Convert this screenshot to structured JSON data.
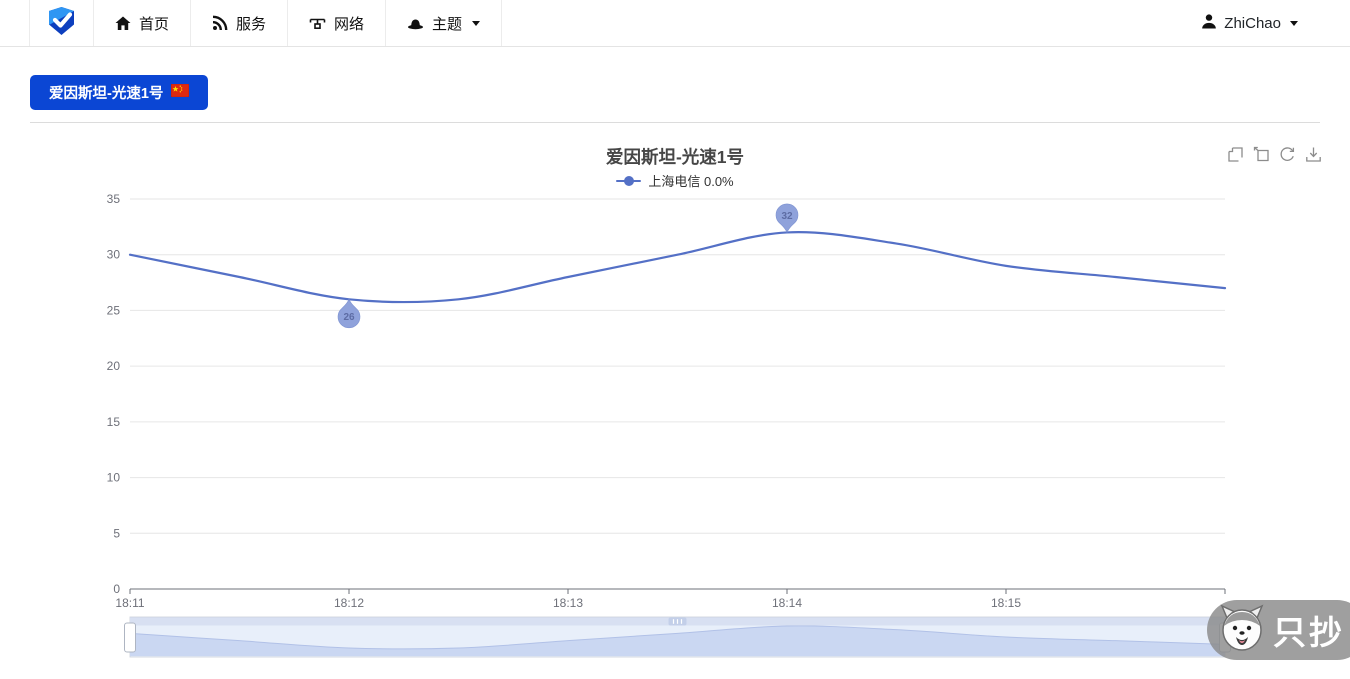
{
  "navbar": {
    "items": [
      {
        "label": "首页",
        "icon": "home-icon"
      },
      {
        "label": "服务",
        "icon": "rss-icon"
      },
      {
        "label": "网络",
        "icon": "network-icon"
      },
      {
        "label": "主题",
        "icon": "theme-icon",
        "dropdown": true
      }
    ],
    "user": {
      "label": "ZhiChao",
      "icon": "user-icon",
      "dropdown": true
    }
  },
  "toolbar": {
    "node_button_label": "爱因斯坦-光速1号",
    "node_button_flag": "china-flag",
    "node_button_color": "#0b46d4"
  },
  "chart": {
    "title": "爱因斯坦-光速1号",
    "legend_label": "上海电信 0.0%",
    "toolbox_icons": [
      "area-zoom-icon",
      "zoom-reset-icon",
      "restore-icon",
      "save-image-icon"
    ]
  },
  "chart_data": {
    "type": "line",
    "title": "爱因斯坦-光速1号",
    "legend_entries": [
      "上海电信 0.0%"
    ],
    "legend_position": "top",
    "grid": true,
    "smooth": true,
    "series": [
      {
        "name": "上海电信 0.0%",
        "color": "#5470c6",
        "x": [
          "18:11:00",
          "18:11:30",
          "18:12:00",
          "18:12:30",
          "18:13:00",
          "18:13:30",
          "18:14:00",
          "18:14:30",
          "18:15:00",
          "18:15:30",
          "18:16:00"
        ],
        "values": [
          30,
          28,
          26,
          26,
          28,
          30,
          32,
          31,
          29,
          28,
          27
        ]
      }
    ],
    "x_tick_labels": [
      "18:11",
      "18:12",
      "18:13",
      "18:14",
      "18:15"
    ],
    "y_ticks": [
      0,
      5,
      10,
      15,
      20,
      25,
      30,
      35
    ],
    "ylim": [
      0,
      35
    ],
    "markers": {
      "max": {
        "x": "18:14:00",
        "value": 32,
        "label": "32"
      },
      "min": {
        "x": "18:12:00",
        "value": 26,
        "label": "26"
      }
    },
    "datazoom": {
      "enabled": true,
      "range_percent": [
        0,
        100
      ]
    },
    "colors": {
      "line": "#5470c6",
      "pin_fill": "#8fa2db",
      "pin_label": "#5d6ca4",
      "axis": "#6E7079",
      "grid_line": "#e6e6e6",
      "tick_label": "#6E7079"
    }
  },
  "watermark": {
    "text": "只抄"
  }
}
